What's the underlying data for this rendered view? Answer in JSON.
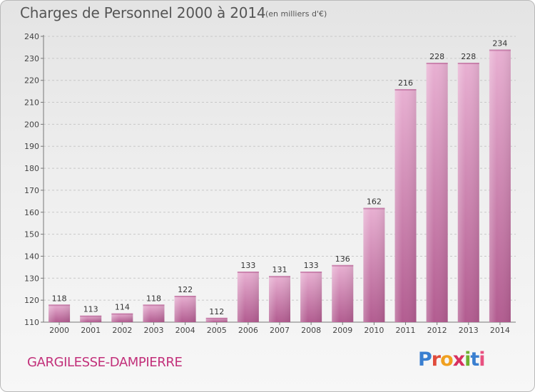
{
  "header": {
    "title": "Charges de Personnel 2000 à 2014",
    "subtitle": "(en milliers d'€)"
  },
  "footer": {
    "commune": "GARGILESSE-DAMPIERRE",
    "logo_text": "Proxiti"
  },
  "colors": {
    "bar_light": "#e8b0d2",
    "bar_dark": "#b25c90",
    "commune_text": "#c2307a",
    "logo_letters": [
      "#3a7fd0",
      "#e04c3c",
      "#f0a020",
      "#d83060",
      "#70b030",
      "#3a7fd0",
      "#e85080"
    ]
  },
  "chart_data": {
    "type": "bar",
    "categories": [
      "2000",
      "2001",
      "2002",
      "2003",
      "2004",
      "2005",
      "2006",
      "2007",
      "2008",
      "2009",
      "2010",
      "2011",
      "2012",
      "2013",
      "2014"
    ],
    "values": [
      118,
      113,
      114,
      118,
      122,
      112,
      133,
      131,
      133,
      136,
      162,
      216,
      228,
      228,
      234
    ],
    "ylim": [
      110,
      240
    ],
    "yticks": [
      110,
      120,
      130,
      140,
      150,
      160,
      170,
      180,
      190,
      200,
      210,
      220,
      230,
      240
    ],
    "grid": "horizontal dashed",
    "data_labels": true
  }
}
